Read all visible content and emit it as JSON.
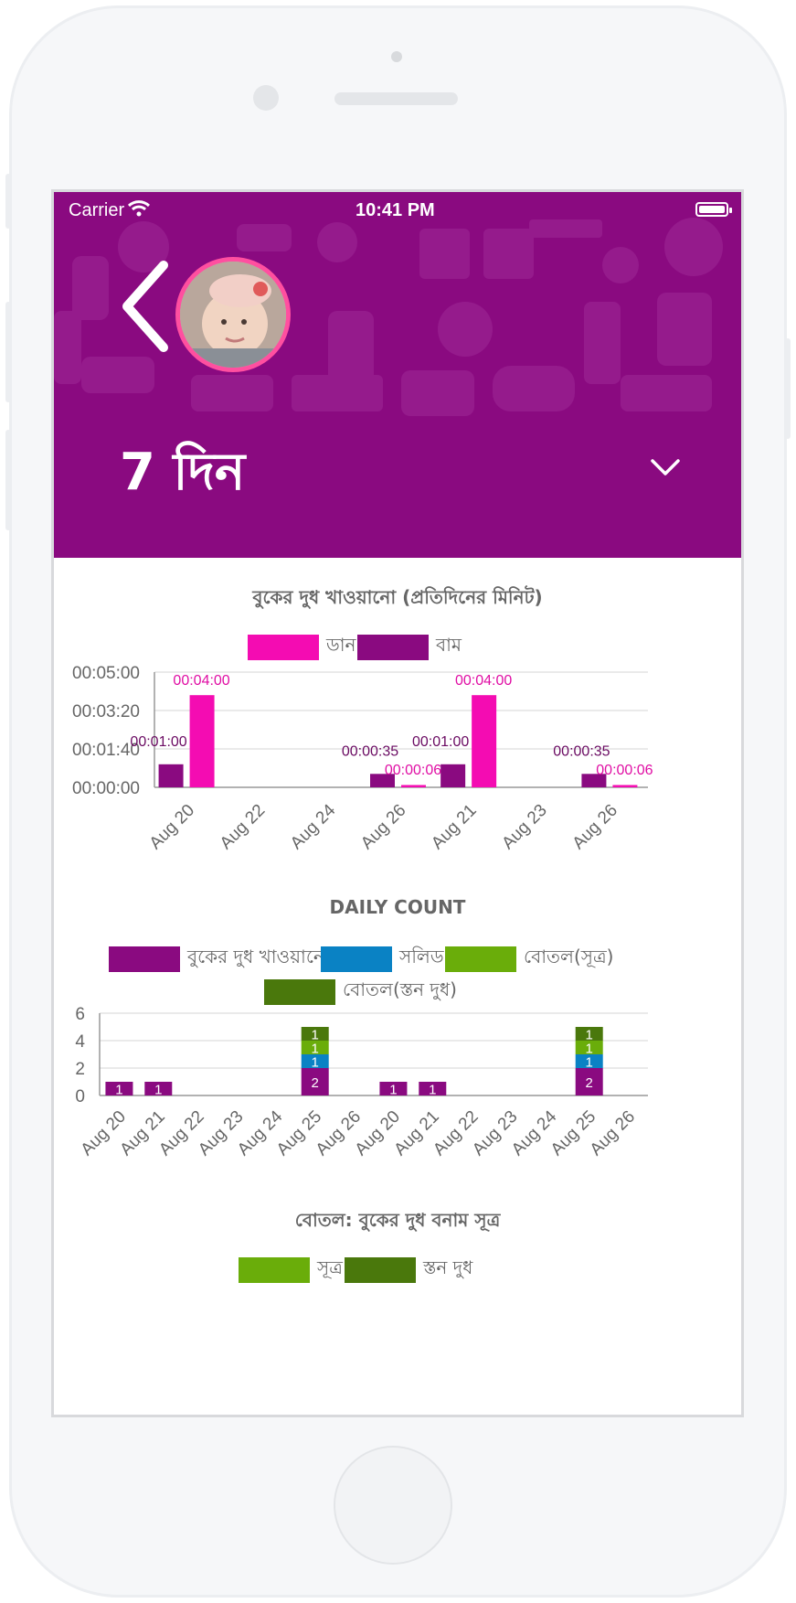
{
  "status_bar": {
    "carrier": "Carrier",
    "time": "10:41 PM"
  },
  "header": {
    "title": "7 দিন"
  },
  "colors": {
    "header": "#8a0a80",
    "right": "#f40cb2",
    "left": "#8a0a80",
    "solid": "#0a82c4",
    "bottle_formula": "#6aad0a",
    "bottle_breastmilk": "#4a780c",
    "avatar_ring": "#ff4fa0"
  },
  "icons": {
    "back": "chevron-left-icon",
    "dropdown": "chevron-down-icon",
    "wifi": "wifi-icon",
    "battery": "battery-icon"
  },
  "chart_data": [
    {
      "type": "bar",
      "title": "বুকের দুধ খাওয়ানো (প্রতিদিনের মিনিট)",
      "legend": [
        "ডান",
        "বাম"
      ],
      "yticks": [
        "00:05:00",
        "00:03:20",
        "00:01:40",
        "00:00:00"
      ],
      "ylim": [
        0,
        300
      ],
      "categories": [
        "Aug 20",
        "Aug 22",
        "Aug 24",
        "Aug 26",
        "Aug 21",
        "Aug 23",
        "Aug 26"
      ],
      "series": [
        {
          "name": "বাম",
          "values": [
            60,
            0,
            0,
            35,
            60,
            0,
            35
          ],
          "labels": [
            "00:01:00",
            "",
            "",
            "00:00:35",
            "00:01:00",
            "",
            "00:00:35"
          ]
        },
        {
          "name": "ডান",
          "values": [
            240,
            0,
            0,
            6,
            240,
            0,
            6
          ],
          "labels": [
            "00:04:00",
            "",
            "",
            "00:00:06",
            "00:04:00",
            "",
            "00:00:06"
          ]
        }
      ]
    },
    {
      "type": "bar",
      "title": "DAILY COUNT",
      "legend": [
        "বুকের দুধ খাওয়ানো",
        "সলিড",
        "বোতল(সূত্র)",
        "বোতল(স্তন দুধ)"
      ],
      "yticks": [
        "6",
        "4",
        "2",
        "0"
      ],
      "ylim": [
        0,
        6
      ],
      "categories": [
        "Aug 20",
        "Aug 21",
        "Aug 22",
        "Aug 23",
        "Aug 24",
        "Aug 25",
        "Aug 26",
        "Aug 20",
        "Aug 21",
        "Aug 22",
        "Aug 23",
        "Aug 24",
        "Aug 25",
        "Aug 26"
      ],
      "series": [
        {
          "name": "বুকের দুধ খাওয়ানো",
          "values": [
            1,
            1,
            0,
            0,
            0,
            2,
            0,
            1,
            1,
            0,
            0,
            0,
            2,
            0
          ]
        },
        {
          "name": "সলিড",
          "values": [
            0,
            0,
            0,
            0,
            0,
            1,
            0,
            0,
            0,
            0,
            0,
            0,
            1,
            0
          ]
        },
        {
          "name": "বোতল(সূত্র)",
          "values": [
            0,
            0,
            0,
            0,
            0,
            1,
            0,
            0,
            0,
            0,
            0,
            0,
            1,
            0
          ]
        },
        {
          "name": "বোতল(স্তন দুধ)",
          "values": [
            0,
            0,
            0,
            0,
            0,
            1,
            0,
            0,
            0,
            0,
            0,
            0,
            1,
            0
          ]
        }
      ]
    },
    {
      "type": "bar",
      "title": "বোতল: বুকের দুধ বনাম সূত্র",
      "legend": [
        "সূত্র",
        "স্তন দুধ"
      ]
    }
  ]
}
